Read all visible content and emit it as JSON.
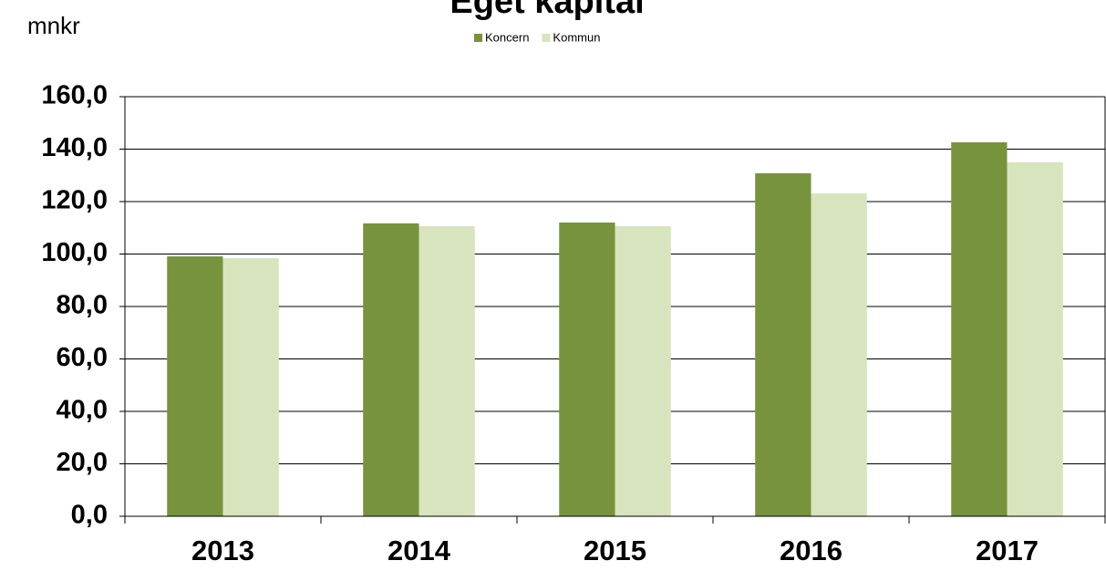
{
  "chart_data": {
    "type": "bar",
    "title": "Eget kapital",
    "ylabel": "mnkr",
    "categories": [
      "2013",
      "2014",
      "2015",
      "2016",
      "2017"
    ],
    "series": [
      {
        "name": "Koncern",
        "color": "#77933c",
        "values": [
          99.1,
          111.7,
          112.0,
          130.8,
          142.6
        ]
      },
      {
        "name": "Kommun",
        "color": "#d7e4bd",
        "values": [
          98.4,
          110.6,
          110.6,
          123.1,
          135.0
        ]
      }
    ],
    "ylim": [
      0,
      160
    ],
    "yticks": [
      {
        "value": 0,
        "label": "0,0"
      },
      {
        "value": 20,
        "label": "20,0"
      },
      {
        "value": 40,
        "label": "40,0"
      },
      {
        "value": 60,
        "label": "60,0"
      },
      {
        "value": 80,
        "label": "80,0"
      },
      {
        "value": 100,
        "label": "100,0"
      },
      {
        "value": 120,
        "label": "120,0"
      },
      {
        "value": 140,
        "label": "140,0"
      },
      {
        "value": 160,
        "label": "160,0"
      }
    ],
    "grid": true,
    "legend": "top"
  }
}
